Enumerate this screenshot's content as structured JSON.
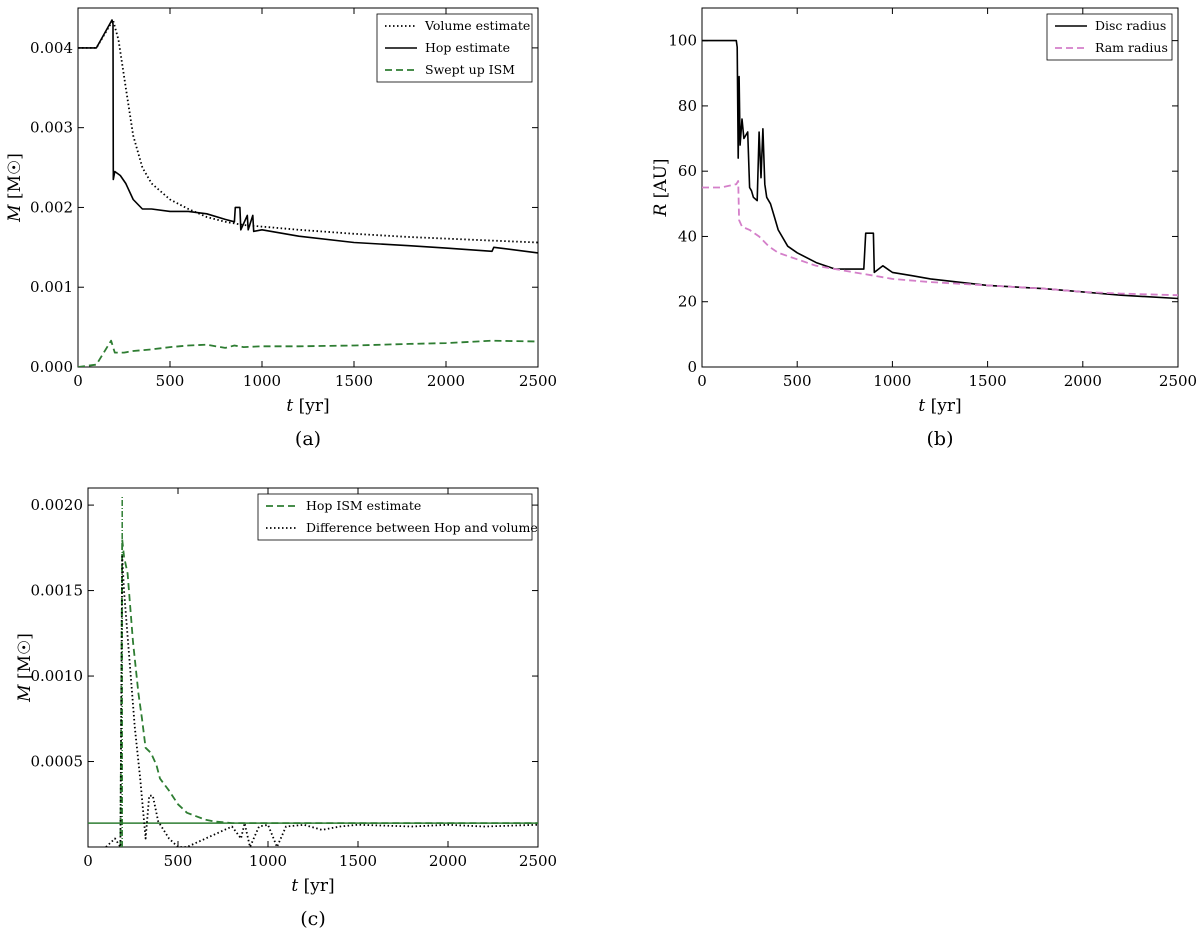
{
  "chart_data": [
    {
      "id": "a",
      "type": "line",
      "panel_label": "(a)",
      "xlabel": "t",
      "xunit": "[yr]",
      "ylabel": "M",
      "yunit": "[M☉]",
      "xlim": [
        0,
        2500
      ],
      "ylim": [
        0,
        0.0045
      ],
      "xticks": [
        0,
        500,
        1000,
        1500,
        2000,
        2500
      ],
      "yticks": [
        0.0,
        0.001,
        0.002,
        0.003,
        0.004
      ],
      "ytick_labels": [
        "0.000",
        "0.001",
        "0.002",
        "0.003",
        "0.004"
      ],
      "xtick_labels": [
        "0",
        "500",
        "1000",
        "1500",
        "2000",
        "2500"
      ],
      "legend_position": "top-right",
      "series": [
        {
          "name": "Volume estimate",
          "style": "dotted",
          "color": "#000000",
          "x": [
            0,
            100,
            190,
            220,
            260,
            300,
            350,
            400,
            500,
            600,
            700,
            800,
            900,
            1000,
            1200,
            1500,
            1800,
            2000,
            2200,
            2500
          ],
          "y": [
            0.004,
            0.004,
            0.00435,
            0.0041,
            0.0035,
            0.0029,
            0.0025,
            0.0023,
            0.0021,
            0.00198,
            0.00188,
            0.00182,
            0.00178,
            0.00176,
            0.00172,
            0.00167,
            0.00163,
            0.00161,
            0.00159,
            0.00156
          ]
        },
        {
          "name": "Hop estimate",
          "style": "solid",
          "color": "#000000",
          "x": [
            0,
            100,
            185,
            190,
            192,
            200,
            230,
            260,
            300,
            350,
            400,
            500,
            600,
            700,
            800,
            850,
            855,
            880,
            885,
            920,
            925,
            950,
            955,
            1000,
            1200,
            1500,
            1800,
            2000,
            2250,
            2260,
            2500
          ],
          "y": [
            0.004,
            0.004,
            0.00435,
            0.0043,
            0.00235,
            0.00245,
            0.0024,
            0.0023,
            0.0021,
            0.00198,
            0.00198,
            0.00195,
            0.00195,
            0.00192,
            0.00185,
            0.00182,
            0.002,
            0.002,
            0.00172,
            0.0019,
            0.00172,
            0.0019,
            0.0017,
            0.00172,
            0.00164,
            0.00156,
            0.00152,
            0.00149,
            0.00145,
            0.0015,
            0.00143
          ]
        },
        {
          "name": "Swept up ISM",
          "style": "dashed",
          "color": "#2e7d32",
          "x": [
            0,
            100,
            180,
            200,
            250,
            300,
            400,
            500,
            600,
            700,
            800,
            850,
            900,
            1000,
            1200,
            1500,
            1800,
            2000,
            2250,
            2500
          ],
          "y": [
            0.0,
            3e-05,
            0.00033,
            0.00018,
            0.00018,
            0.0002,
            0.00022,
            0.00025,
            0.00027,
            0.00028,
            0.00024,
            0.00027,
            0.00025,
            0.00026,
            0.00026,
            0.00027,
            0.00029,
            0.0003,
            0.00033,
            0.00032
          ]
        }
      ]
    },
    {
      "id": "b",
      "type": "line",
      "panel_label": "(b)",
      "xlabel": "t",
      "xunit": "[yr]",
      "ylabel": "R",
      "yunit": "[AU]",
      "xlim": [
        0,
        2500
      ],
      "ylim": [
        0,
        110
      ],
      "xticks": [
        0,
        500,
        1000,
        1500,
        2000,
        2500
      ],
      "yticks": [
        0,
        20,
        40,
        60,
        80,
        100
      ],
      "ytick_labels": [
        "0",
        "20",
        "40",
        "60",
        "80",
        "100"
      ],
      "xtick_labels": [
        "0",
        "500",
        "1000",
        "1500",
        "2000",
        "2500"
      ],
      "legend_position": "top-right",
      "series": [
        {
          "name": "Disc radius",
          "style": "solid",
          "color": "#000000",
          "x": [
            0,
            180,
            185,
            190,
            195,
            200,
            210,
            220,
            240,
            250,
            260,
            270,
            290,
            300,
            310,
            320,
            330,
            340,
            360,
            380,
            400,
            450,
            500,
            600,
            700,
            800,
            850,
            860,
            900,
            905,
            950,
            1000,
            1100,
            1200,
            1500,
            1800,
            2000,
            2200,
            2500
          ],
          "y": [
            100,
            100,
            98,
            64,
            89,
            68,
            76,
            70,
            72,
            55,
            54,
            52,
            51,
            72,
            58,
            73,
            56,
            52,
            50,
            46,
            42,
            37,
            35,
            32,
            30,
            30,
            30,
            41,
            41,
            29,
            31,
            29,
            28,
            27,
            25,
            24,
            23,
            22,
            21
          ]
        },
        {
          "name": "Ram radius",
          "style": "dashed",
          "color": "#d47fc9",
          "x": [
            0,
            100,
            180,
            190,
            195,
            210,
            250,
            300,
            350,
            400,
            500,
            600,
            700,
            800,
            900,
            1000,
            1200,
            1500,
            1800,
            2000,
            2200,
            2500
          ],
          "y": [
            55,
            55,
            56,
            57,
            45,
            43,
            42,
            40,
            37,
            35,
            33,
            31,
            30,
            29,
            28,
            27,
            26,
            25,
            24,
            23,
            22.5,
            22
          ]
        }
      ]
    },
    {
      "id": "c",
      "type": "line",
      "panel_label": "(c)",
      "xlabel": "t",
      "xunit": "[yr]",
      "ylabel": "M",
      "yunit": "[M☉]",
      "xlim": [
        0,
        2500
      ],
      "ylim": [
        0,
        0.0021
      ],
      "xticks": [
        0,
        500,
        1000,
        1500,
        2000,
        2500
      ],
      "yticks": [
        0.0005,
        0.001,
        0.0015,
        0.002
      ],
      "ytick_labels": [
        "0.0005",
        "0.0010",
        "0.0015",
        "0.0020"
      ],
      "xtick_labels": [
        "0",
        "500",
        "1000",
        "1500",
        "2000",
        "2500"
      ],
      "legend_position": "top-right",
      "horizontal_line": {
        "y": 0.00014,
        "color": "#2e7d32"
      },
      "vertical_marker": {
        "x": 190,
        "y_top": 0.00205,
        "color": "#2e7d32"
      },
      "series": [
        {
          "name": "Hop ISM estimate",
          "style": "dashed",
          "color": "#2e7d32",
          "x": [
            180,
            190,
            200,
            220,
            250,
            280,
            300,
            320,
            350,
            380,
            400,
            450,
            500,
            550,
            600,
            650,
            700,
            800,
            1000,
            1500,
            2000,
            2500
          ],
          "y": [
            0.0,
            0.0018,
            0.0017,
            0.0016,
            0.0012,
            0.0009,
            0.00075,
            0.00058,
            0.00055,
            0.00048,
            0.0004,
            0.00033,
            0.00025,
            0.0002,
            0.00018,
            0.00016,
            0.00015,
            0.00014,
            0.00014,
            0.00014,
            0.00014,
            0.00014
          ]
        },
        {
          "name": "Difference between Hop and volume",
          "style": "dotted",
          "color": "#000000",
          "x": [
            100,
            150,
            180,
            190,
            200,
            230,
            260,
            290,
            320,
            340,
            360,
            390,
            420,
            450,
            500,
            550,
            800,
            850,
            870,
            900,
            950,
            1000,
            1050,
            1100,
            1200,
            1300,
            1400,
            1500,
            1800,
            2000,
            2200,
            2500
          ],
          "y": [
            0.0,
            5e-05,
            0.0,
            0.0017,
            0.0015,
            0.0011,
            0.0007,
            0.0004,
            5e-05,
            0.0003,
            0.0003,
            0.00015,
            0.0001,
            5e-05,
            0.0,
            0.0,
            0.00012,
            5e-05,
            0.00014,
            0.0,
            0.00012,
            0.00013,
            0.0,
            0.00012,
            0.00013,
            0.0001,
            0.00012,
            0.00013,
            0.00012,
            0.00013,
            0.00012,
            0.00013
          ]
        }
      ]
    }
  ]
}
